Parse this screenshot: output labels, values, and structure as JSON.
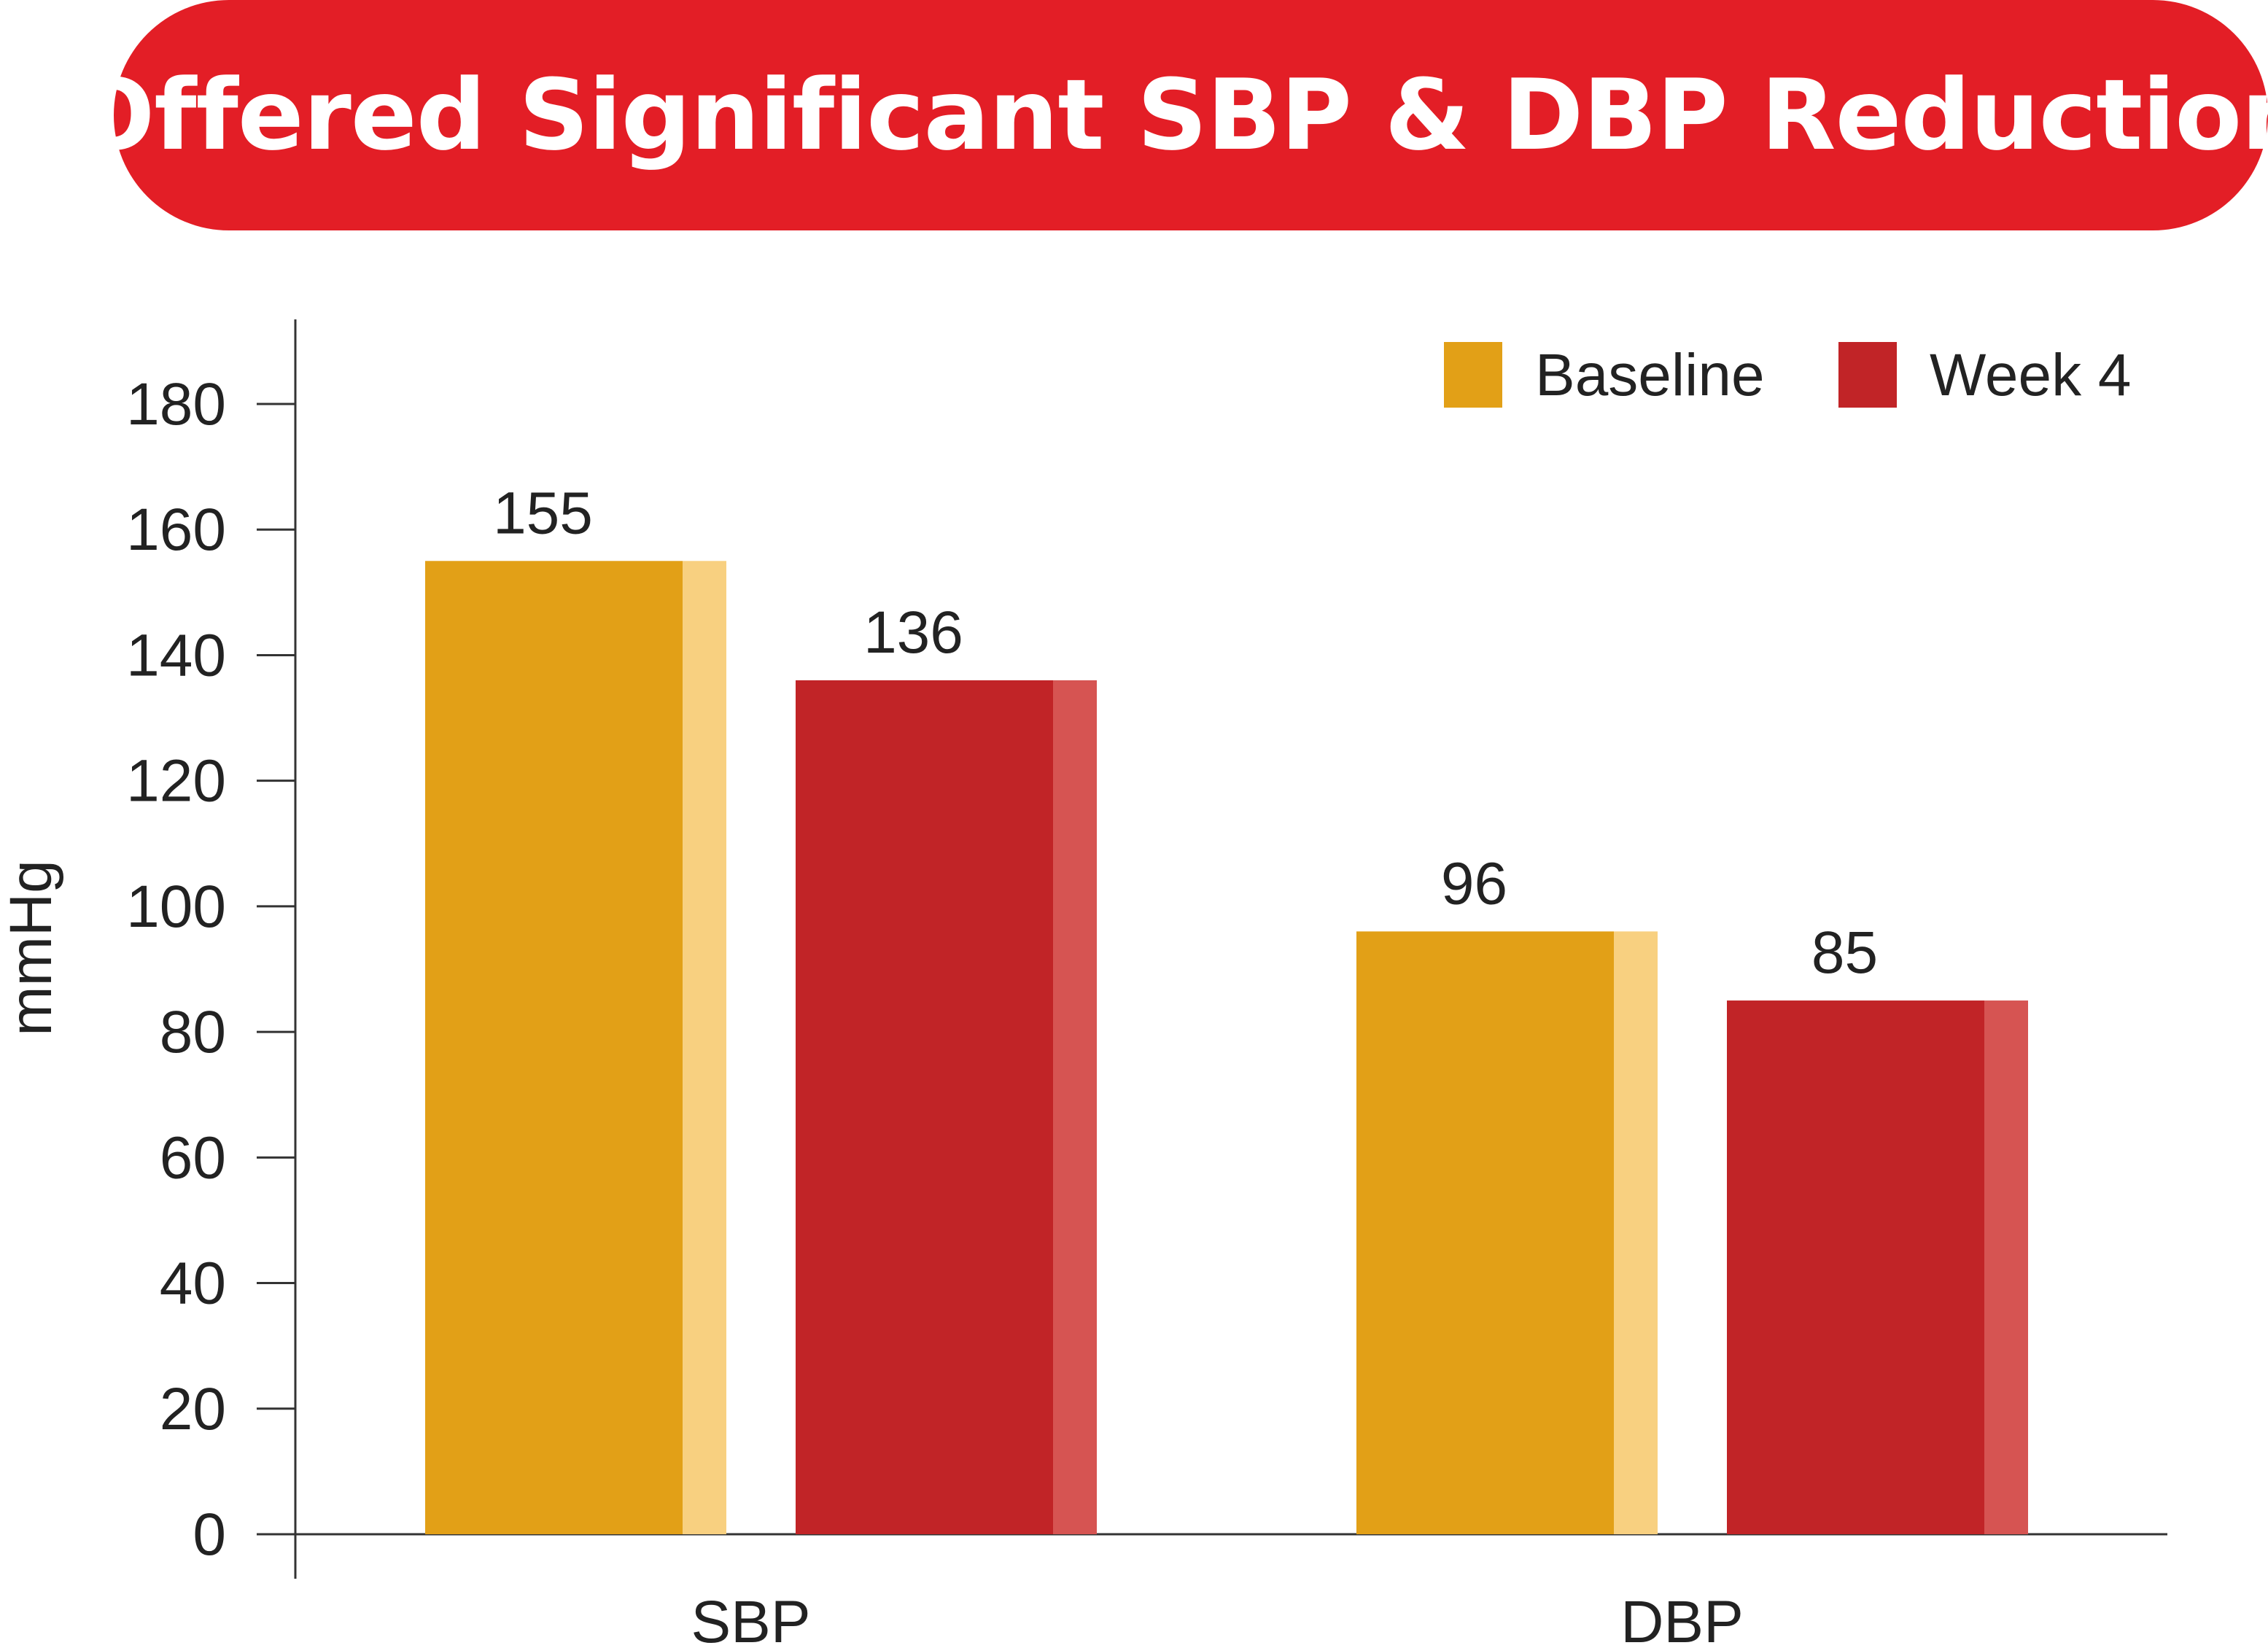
{
  "colors": {
    "banner": "#E31E26",
    "baseline": "#E2A017",
    "baseline_highlight": "#F8D080",
    "week4": "#C12427",
    "week4_highlight": "#D65452",
    "axis": "#333333",
    "text": "#222222"
  },
  "chart_data": {
    "type": "bar",
    "title": "Offered Significant SBP & DBP Reduction",
    "xlabel": "",
    "ylabel": "mmHg",
    "ylim": [
      0,
      190
    ],
    "yticks": [
      "0",
      "20",
      "40",
      "60",
      "80",
      "100",
      "120",
      "140",
      "160",
      "180"
    ],
    "categories": [
      "SBP",
      "DBP"
    ],
    "series": [
      {
        "name": "Baseline",
        "values": [
          155,
          96
        ],
        "labels": [
          "155",
          "96"
        ]
      },
      {
        "name": "Week 4",
        "values": [
          136,
          85
        ],
        "labels": [
          "136",
          "85"
        ]
      }
    ],
    "legend": "top-right",
    "grid": false
  }
}
